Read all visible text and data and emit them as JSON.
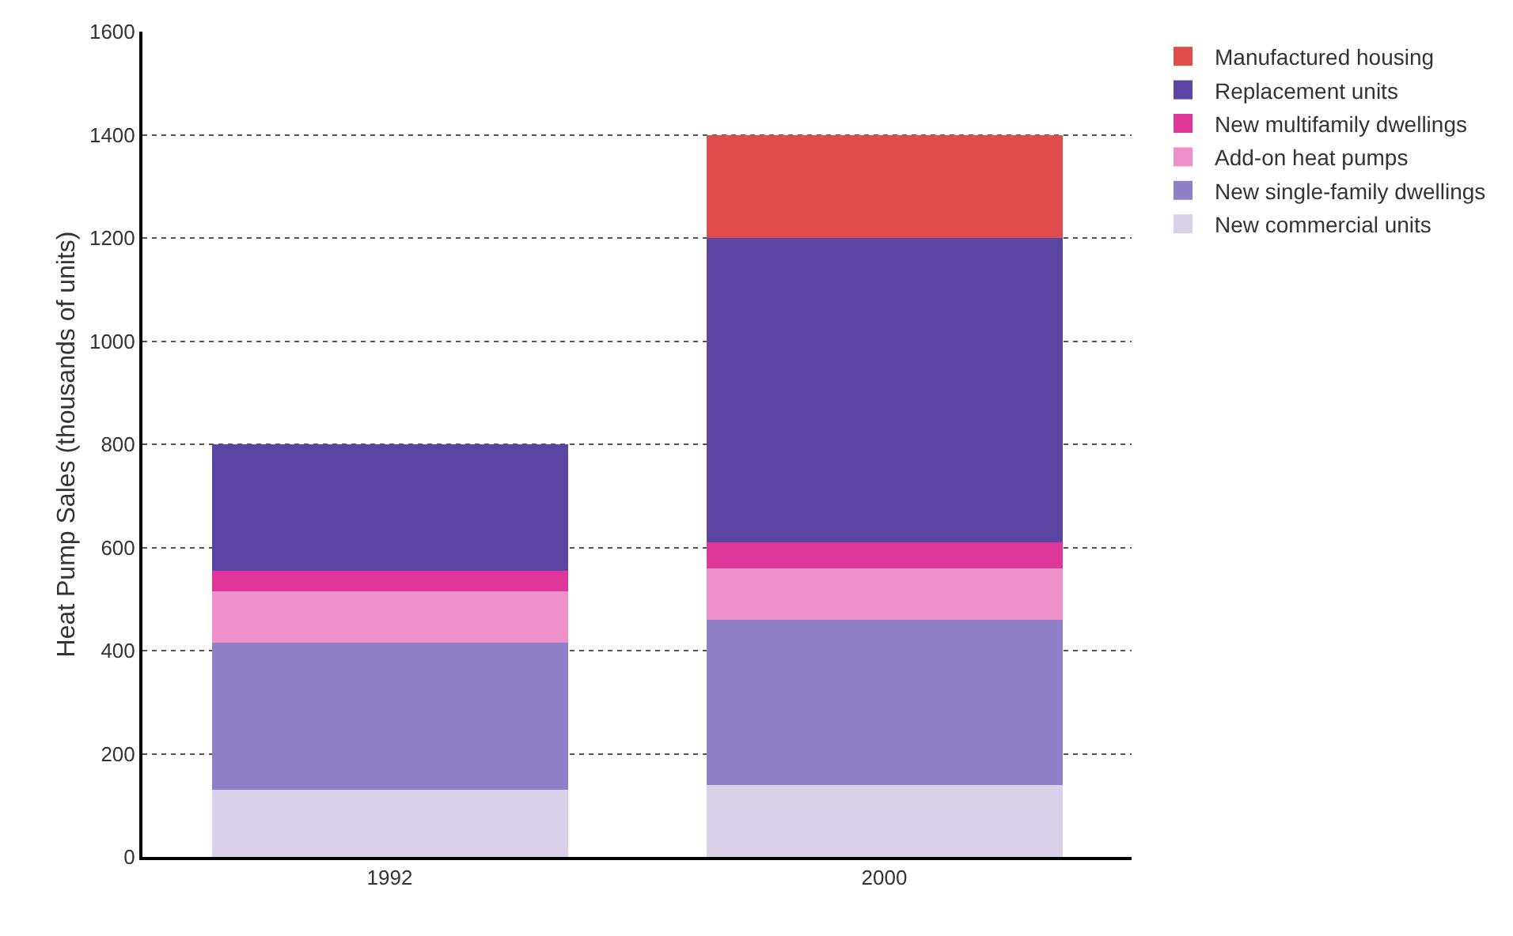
{
  "chart_data": {
    "type": "bar",
    "stacked": true,
    "ylabel": "Heat Pump Sales (thousands of units)",
    "categories": [
      "1992",
      "2000"
    ],
    "series": [
      {
        "name": "New commercial units",
        "color": "#d9d0ea",
        "values": [
          130,
          140
        ]
      },
      {
        "name": "New single-family dwellings",
        "color": "#8e7fc7",
        "values": [
          285,
          320
        ]
      },
      {
        "name": "Add-on heat pumps",
        "color": "#ee90c9",
        "values": [
          100,
          100
        ]
      },
      {
        "name": "New multifamily dwellings",
        "color": "#df3799",
        "values": [
          40,
          50
        ]
      },
      {
        "name": "Replacement units",
        "color": "#5b45a2",
        "values": [
          245,
          590
        ]
      },
      {
        "name": "Manufactured housing",
        "color": "#e04b4b",
        "values": [
          0,
          200
        ]
      }
    ],
    "ylim": [
      0,
      1600
    ],
    "yticks": [
      0,
      200,
      400,
      600,
      800,
      1000,
      1200,
      1400,
      1600
    ],
    "grid": "y",
    "legend": "right"
  }
}
